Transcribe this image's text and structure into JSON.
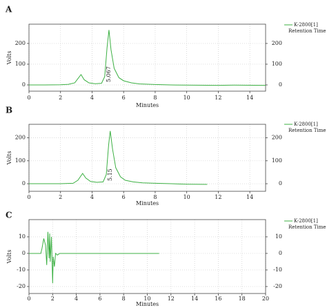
{
  "chart_data": [
    {
      "type": "line",
      "label": "A",
      "xlabel": "Minutes",
      "ylabel": "Volts",
      "xlim": [
        0,
        15
      ],
      "xticks": [
        0,
        2,
        4,
        6,
        8,
        10,
        12,
        14
      ],
      "ylim": [
        -30,
        293
      ],
      "yticks": [
        0,
        100,
        200
      ],
      "y2lim": [
        -30,
        293
      ],
      "y2ticks": [
        0,
        100,
        200
      ],
      "grid": true,
      "x": [
        0,
        1,
        2,
        2.5,
        2.9,
        3.1,
        3.3,
        3.5,
        3.8,
        4.2,
        4.6,
        4.8,
        4.95,
        5.07,
        5.2,
        5.4,
        5.7,
        6,
        6.5,
        7,
        8,
        9,
        10,
        12,
        13,
        15
      ],
      "series": [
        {
          "name": "K-2800[1]",
          "color": "#3cb043",
          "values": [
            0,
            0,
            1,
            3,
            10,
            30,
            50,
            25,
            10,
            6,
            8,
            40,
            180,
            265,
            170,
            80,
            35,
            20,
            10,
            5,
            2,
            0,
            -1,
            -2,
            -1,
            -2
          ]
        }
      ],
      "retention": {
        "name": "Retention Time",
        "values": [
          5.067
        ]
      }
    },
    {
      "type": "line",
      "label": "B",
      "xlabel": "Minutes",
      "ylabel": "Volts",
      "xlim": [
        0,
        15
      ],
      "xticks": [
        0,
        2,
        4,
        6,
        8,
        10,
        12,
        14
      ],
      "ylim": [
        -33,
        259
      ],
      "yticks": [
        0,
        100,
        200
      ],
      "y2lim": [
        -33,
        259
      ],
      "y2ticks": [
        0,
        100,
        200
      ],
      "grid": true,
      "x": [
        0,
        1,
        2,
        2.8,
        3.1,
        3.4,
        3.6,
        3.9,
        4.3,
        4.7,
        4.9,
        5.05,
        5.15,
        5.3,
        5.5,
        5.8,
        6.1,
        6.6,
        7.2,
        8,
        9,
        10,
        11.3
      ],
      "series": [
        {
          "name": "K-2800[1]",
          "color": "#3cb043",
          "values": [
            0,
            0,
            0,
            2,
            15,
            45,
            25,
            10,
            6,
            8,
            40,
            170,
            230,
            150,
            70,
            30,
            15,
            8,
            4,
            2,
            0,
            -2,
            -3
          ]
        }
      ],
      "retention": {
        "name": "Retention Time",
        "values": [
          5.15
        ]
      }
    },
    {
      "type": "line",
      "label": "C",
      "xlabel": "Minutes",
      "ylabel": "Volts",
      "xlim": [
        0,
        20
      ],
      "xticks": [
        0,
        2,
        4,
        6,
        8,
        10,
        12,
        14,
        16,
        18,
        20
      ],
      "ylim": [
        -24.2,
        20.4
      ],
      "yticks": [
        -20,
        -10,
        0,
        10
      ],
      "y2lim": [
        -24.2,
        20.4
      ],
      "y2ticks": [
        -20,
        -10,
        0,
        10
      ],
      "grid": true,
      "x": [
        0,
        1,
        1.1,
        1.25,
        1.4,
        1.5,
        1.6,
        1.7,
        1.75,
        1.8,
        1.9,
        2.0,
        2.05,
        2.15,
        2.25,
        2.4,
        2.6,
        3,
        5,
        8,
        11
      ],
      "series": [
        {
          "name": "K-2800[1]",
          "color": "#3cb043",
          "values": [
            0,
            0,
            3,
            9,
            5,
            -7,
            13,
            -3,
            12,
            -5,
            10,
            -18,
            -2,
            -8,
            0,
            -1,
            0,
            0,
            0,
            0,
            0
          ]
        }
      ],
      "retention": {
        "name": "Retention Time",
        "values": []
      }
    }
  ]
}
